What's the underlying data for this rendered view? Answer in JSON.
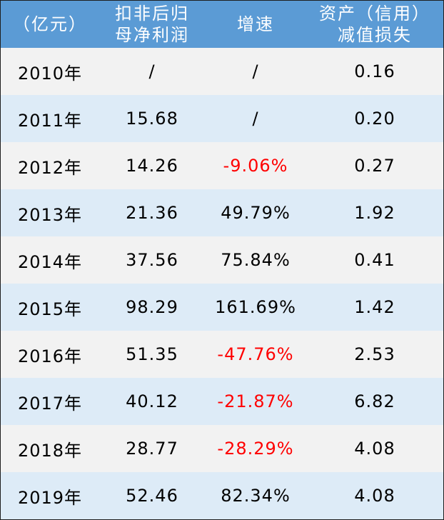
{
  "colors": {
    "header_bg": "#5b9bd5",
    "row_alt": "#ddebf7",
    "row_plain": "#f2f2f2",
    "negative": "#ff0000"
  },
  "header": {
    "col1": "（亿元）",
    "col2_line1": "扣非后归",
    "col2_line2": "母净利润",
    "col3": "增速",
    "col4_line1": "资产（信用）",
    "col4_line2": "减值损失"
  },
  "rows": [
    {
      "year": "2010年",
      "profit": "/",
      "growth": "/",
      "impairment": "0.16"
    },
    {
      "year": "2011年",
      "profit": "15.68",
      "growth": "/",
      "impairment": "0.20"
    },
    {
      "year": "2012年",
      "profit": "14.26",
      "growth": "-9.06%",
      "impairment": "0.27"
    },
    {
      "year": "2013年",
      "profit": "21.36",
      "growth": "49.79%",
      "impairment": "1.92"
    },
    {
      "year": "2014年",
      "profit": "37.56",
      "growth": "75.84%",
      "impairment": "0.41"
    },
    {
      "year": "2015年",
      "profit": "98.29",
      "growth": "161.69%",
      "impairment": "1.42"
    },
    {
      "year": "2016年",
      "profit": "51.35",
      "growth": "-47.76%",
      "impairment": "2.53"
    },
    {
      "year": "2017年",
      "profit": "40.12",
      "growth": "-21.87%",
      "impairment": "6.82"
    },
    {
      "year": "2018年",
      "profit": "28.77",
      "growth": "-28.29%",
      "impairment": "4.08"
    },
    {
      "year": "2019年",
      "profit": "52.46",
      "growth": "82.34%",
      "impairment": "4.08"
    }
  ]
}
